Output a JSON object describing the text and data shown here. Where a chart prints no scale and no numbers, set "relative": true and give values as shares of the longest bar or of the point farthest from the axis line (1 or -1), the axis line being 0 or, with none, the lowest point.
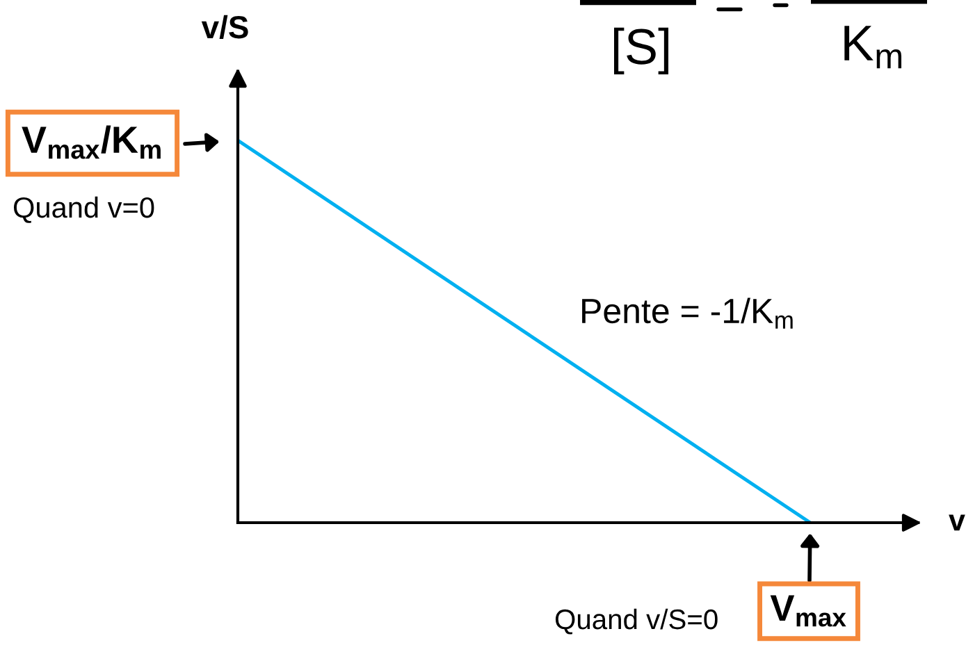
{
  "chart_data": {
    "type": "line",
    "xlabel": "v",
    "ylabel": "v/S",
    "categories": [
      null,
      null
    ],
    "values": [
      1,
      0
    ],
    "color": "#00b0f0",
    "relative": true,
    "annotations": [
      "V$_{max}$/K$_{m}$",
      "Quand v=0",
      "Pente = -1/K$_{m}$",
      "Quand v/S=0",
      "V$_{max}$",
      "[S]",
      "K$_{m}$"
    ]
  }
}
